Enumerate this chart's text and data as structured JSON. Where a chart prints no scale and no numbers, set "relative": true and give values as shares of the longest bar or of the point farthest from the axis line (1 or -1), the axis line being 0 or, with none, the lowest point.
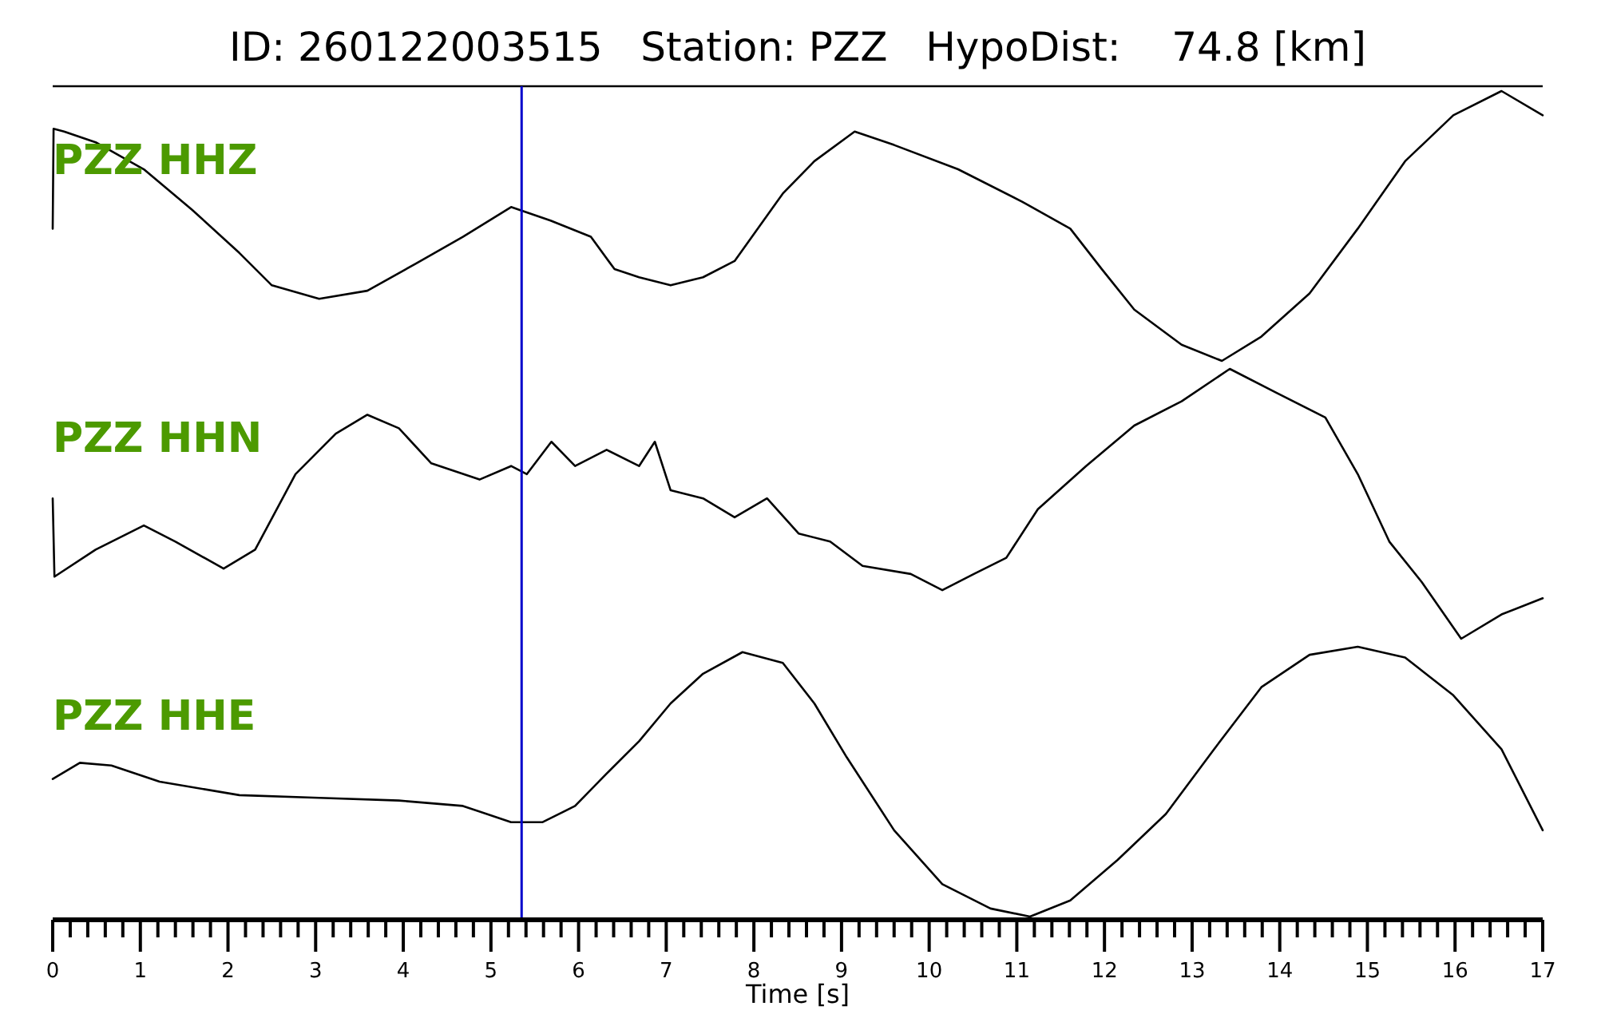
{
  "chart_data": [
    {
      "type": "line",
      "title": "ID: 260122003515   Station: PZZ   HypoDist:    74.8 [km]",
      "relative": true,
      "xlim": [
        0,
        17
      ],
      "tick_labels": false,
      "ref_lines": [
        {
          "axis": "x",
          "value": 5.35,
          "color": "#0000cc"
        }
      ],
      "series": [
        {
          "name": "PZZ HHZ",
          "color": "#000000",
          "x": [
            0,
            0.01,
            0.13,
            0.49,
            1.04,
            1.59,
            2.13,
            2.5,
            3.04,
            3.59,
            4.14,
            4.68,
            5.23,
            5.68,
            6.14,
            6.41,
            6.69,
            7.05,
            7.42,
            7.78,
            8.33,
            8.69,
            9.15,
            9.6,
            10.33,
            11.06,
            11.61,
            11.97,
            12.34,
            12.88,
            13.34,
            13.79,
            14.34,
            14.89,
            15.43,
            15.98,
            16.53,
            17
          ],
          "values": [
            0.49,
            0.86,
            0.85,
            0.81,
            0.71,
            0.56,
            0.4,
            0.28,
            0.23,
            0.26,
            0.36,
            0.46,
            0.57,
            0.52,
            0.46,
            0.34,
            0.31,
            0.28,
            0.31,
            0.37,
            0.62,
            0.74,
            0.85,
            0.8,
            0.71,
            0.59,
            0.49,
            0.34,
            0.19,
            0.06,
            0,
            0.09,
            0.25,
            0.49,
            0.74,
            0.91,
            1,
            0.91
          ]
        }
      ]
    },
    {
      "type": "line",
      "relative": true,
      "xlim": [
        0,
        17
      ],
      "tick_labels": false,
      "ref_lines": [
        {
          "axis": "x",
          "value": 5.35,
          "color": "#0000cc"
        }
      ],
      "series": [
        {
          "name": "PZZ HHN",
          "color": "#000000",
          "x": [
            0,
            0.02,
            0.49,
            1.04,
            1.4,
            1.95,
            2.31,
            2.77,
            3.23,
            3.59,
            3.95,
            4.32,
            4.87,
            5.23,
            5.41,
            5.69,
            5.96,
            6.32,
            6.69,
            6.87,
            7.05,
            7.42,
            7.78,
            8.15,
            8.51,
            8.87,
            9.24,
            9.79,
            10.15,
            10.51,
            10.88,
            11.24,
            11.79,
            12.34,
            12.88,
            13.43,
            13.97,
            14.52,
            14.89,
            15.25,
            15.62,
            16.07,
            16.53,
            17
          ],
          "values": [
            0.52,
            0.23,
            0.33,
            0.42,
            0.36,
            0.26,
            0.33,
            0.61,
            0.76,
            0.83,
            0.78,
            0.65,
            0.59,
            0.64,
            0.61,
            0.73,
            0.64,
            0.7,
            0.64,
            0.73,
            0.55,
            0.52,
            0.45,
            0.52,
            0.39,
            0.36,
            0.27,
            0.24,
            0.18,
            0.24,
            0.3,
            0.48,
            0.64,
            0.79,
            0.88,
            1,
            0.91,
            0.82,
            0.61,
            0.36,
            0.21,
            0,
            0.09,
            0.15
          ]
        }
      ]
    },
    {
      "type": "line",
      "relative": true,
      "xlim": [
        0,
        17
      ],
      "tick_labels": "x",
      "xlabel": "Time [s]",
      "ref_lines": [
        {
          "axis": "x",
          "value": 5.35,
          "color": "#0000cc"
        }
      ],
      "xticks": [
        0,
        {
          "value": 0.2,
          "label": null
        },
        {
          "value": 0.4,
          "label": null
        },
        {
          "value": 0.6,
          "label": null
        },
        {
          "value": 0.8,
          "label": null
        },
        1,
        {
          "value": 1.2,
          "label": null
        },
        {
          "value": 1.4,
          "label": null
        },
        {
          "value": 1.6,
          "label": null
        },
        {
          "value": 1.8,
          "label": null
        },
        2,
        {
          "value": 2.2,
          "label": null
        },
        {
          "value": 2.4,
          "label": null
        },
        {
          "value": 2.6,
          "label": null
        },
        {
          "value": 2.8,
          "label": null
        },
        3,
        {
          "value": 3.2,
          "label": null
        },
        {
          "value": 3.4,
          "label": null
        },
        {
          "value": 3.6,
          "label": null
        },
        {
          "value": 3.8,
          "label": null
        },
        4,
        {
          "value": 4.2,
          "label": null
        },
        {
          "value": 4.4,
          "label": null
        },
        {
          "value": 4.6,
          "label": null
        },
        {
          "value": 4.8,
          "label": null
        },
        5,
        {
          "value": 5.2,
          "label": null
        },
        {
          "value": 5.4,
          "label": null
        },
        {
          "value": 5.6,
          "label": null
        },
        {
          "value": 5.8,
          "label": null
        },
        6,
        {
          "value": 6.2,
          "label": null
        },
        {
          "value": 6.4,
          "label": null
        },
        {
          "value": 6.6,
          "label": null
        },
        {
          "value": 6.8,
          "label": null
        },
        7,
        {
          "value": 7.2,
          "label": null
        },
        {
          "value": 7.4,
          "label": null
        },
        {
          "value": 7.6,
          "label": null
        },
        {
          "value": 7.8,
          "label": null
        },
        8,
        {
          "value": 8.2,
          "label": null
        },
        {
          "value": 8.4,
          "label": null
        },
        {
          "value": 8.6,
          "label": null
        },
        {
          "value": 8.8,
          "label": null
        },
        9,
        {
          "value": 9.2,
          "label": null
        },
        {
          "value": 9.4,
          "label": null
        },
        {
          "value": 9.6,
          "label": null
        },
        {
          "value": 9.8,
          "label": null
        },
        10,
        {
          "value": 10.2,
          "label": null
        },
        {
          "value": 10.4,
          "label": null
        },
        {
          "value": 10.6,
          "label": null
        },
        {
          "value": 10.8,
          "label": null
        },
        11,
        {
          "value": 11.2,
          "label": null
        },
        {
          "value": 11.4,
          "label": null
        },
        {
          "value": 11.6,
          "label": null
        },
        {
          "value": 11.8,
          "label": null
        },
        12,
        {
          "value": 12.2,
          "label": null
        },
        {
          "value": 12.4,
          "label": null
        },
        {
          "value": 12.6,
          "label": null
        },
        {
          "value": 12.8,
          "label": null
        },
        13,
        {
          "value": 13.2,
          "label": null
        },
        {
          "value": 13.4,
          "label": null
        },
        {
          "value": 13.6,
          "label": null
        },
        {
          "value": 13.8,
          "label": null
        },
        14,
        {
          "value": 14.2,
          "label": null
        },
        {
          "value": 14.4,
          "label": null
        },
        {
          "value": 14.6,
          "label": null
        },
        {
          "value": 14.8,
          "label": null
        },
        15,
        {
          "value": 15.2,
          "label": null
        },
        {
          "value": 15.4,
          "label": null
        },
        {
          "value": 15.6,
          "label": null
        },
        {
          "value": 15.8,
          "label": null
        },
        16,
        {
          "value": 16.2,
          "label": null
        },
        {
          "value": 16.4,
          "label": null
        },
        {
          "value": 16.6,
          "label": null
        },
        {
          "value": 16.8,
          "label": null
        },
        17
      ],
      "series": [
        {
          "name": "PZZ HHE",
          "color": "#000000",
          "x": [
            0,
            0.31,
            0.67,
            1.22,
            2.13,
            3.04,
            3.95,
            4.68,
            5.23,
            5.59,
            5.96,
            6.32,
            6.69,
            7.05,
            7.42,
            7.87,
            8.33,
            8.69,
            9.06,
            9.6,
            10.15,
            10.7,
            11.15,
            11.61,
            12.15,
            12.7,
            13.25,
            13.79,
            14.34,
            14.89,
            15.43,
            15.98,
            16.53,
            17
          ],
          "values": [
            0.51,
            0.57,
            0.56,
            0.5,
            0.45,
            0.44,
            0.43,
            0.41,
            0.35,
            0.35,
            0.41,
            0.53,
            0.65,
            0.79,
            0.9,
            0.98,
            0.94,
            0.79,
            0.59,
            0.32,
            0.12,
            0.03,
            0,
            0.06,
            0.21,
            0.38,
            0.62,
            0.85,
            0.97,
            1,
            0.96,
            0.82,
            0.62,
            0.32
          ]
        }
      ]
    }
  ]
}
